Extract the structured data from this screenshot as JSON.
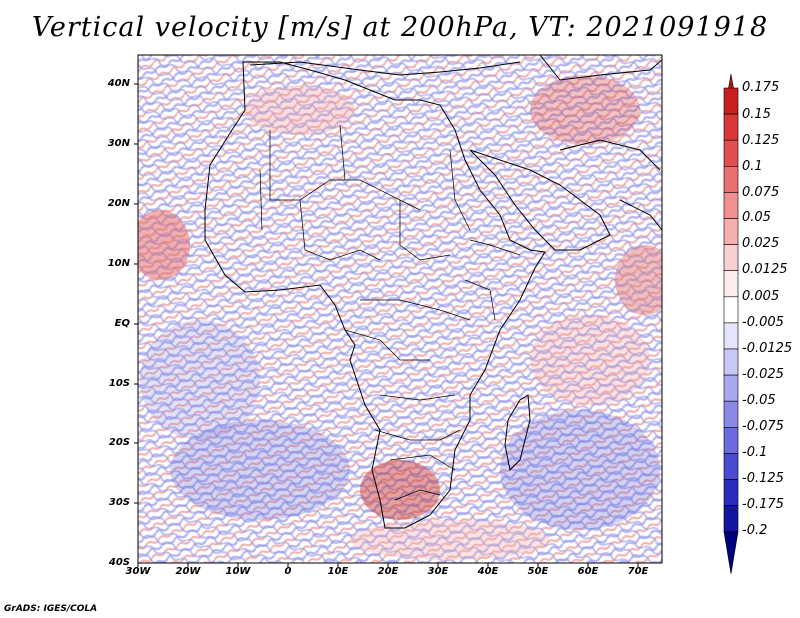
{
  "title": "Vertical velocity [m/s] at 200hPa, VT: 2021091918",
  "credit": "GrADS: IGES/COLA",
  "map": {
    "lat_labels": [
      "40N",
      "30N",
      "20N",
      "10N",
      "EQ",
      "10S",
      "20S",
      "30S",
      "40S"
    ],
    "lon_labels": [
      "30W",
      "20W",
      "10W",
      "0",
      "10E",
      "20E",
      "30E",
      "40E",
      "50E",
      "60E",
      "70E"
    ],
    "lat_range": [
      -40,
      45
    ],
    "lon_range": [
      -30,
      75
    ]
  },
  "colorbar": {
    "levels": [
      "0.175",
      "0.15",
      "0.125",
      "0.1",
      "0.075",
      "0.05",
      "0.025",
      "0.0125",
      "0.005",
      "-0.005",
      "-0.0125",
      "-0.025",
      "-0.05",
      "-0.075",
      "-0.1",
      "-0.125",
      "-0.175",
      "-0.2"
    ],
    "colors": [
      "#b01818",
      "#c82020",
      "#d83838",
      "#e05050",
      "#e87070",
      "#f09090",
      "#f4b0b0",
      "#f8d0d0",
      "#fcecec",
      "#ffffff",
      "#e4e4fa",
      "#c8c8f4",
      "#a8a8ee",
      "#8a8ae6",
      "#6c6cde",
      "#4a4ad2",
      "#2c2cbc",
      "#1414a0",
      "#000080"
    ]
  }
}
